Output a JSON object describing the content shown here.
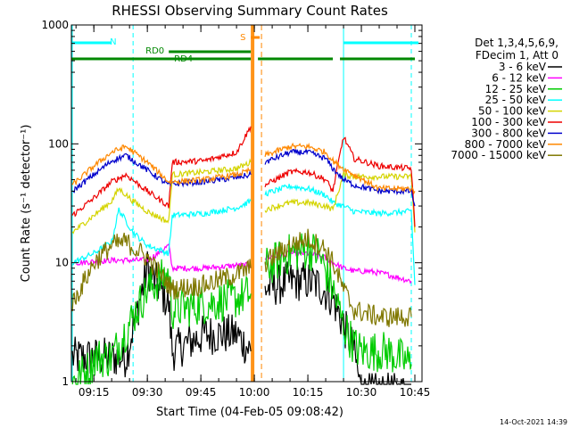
{
  "chart_data": {
    "type": "line",
    "title": "RHESSI Observing Summary Count Rates",
    "xlabel": "Start Time (04-Feb-05 09:08:42)",
    "ylabel": "Count Rate (s⁻¹ detector⁻¹)",
    "yscale": "log",
    "ylim": [
      1,
      1000
    ],
    "xlim": [
      "09:08:42",
      "10:47:00"
    ],
    "x_ticks": [
      "09:15",
      "09:30",
      "09:45",
      "10:00",
      "10:15",
      "10:30",
      "10:45"
    ],
    "y_ticks": [
      "1",
      "10",
      "100",
      "1000"
    ],
    "legend_header": [
      "Det 1,3,4,5,6,9,",
      "FDecim 1, Att 0"
    ],
    "legend_position": "right",
    "timestamp": "14-Oct-2021 14:39",
    "series": [
      {
        "name": "3 - 6 keV",
        "color": "#000000",
        "x": [
          "09:09",
          "09:20",
          "09:24",
          "09:30",
          "09:36",
          "09:37",
          "09:46",
          "09:55",
          "09:59",
          "10:00",
          "10:03",
          "10:10",
          "10:15",
          "10:18",
          "10:22",
          "10:25",
          "10:28",
          "10:30",
          "10:33",
          "10:37",
          "10:44"
        ],
        "y": [
          1.6,
          1.6,
          1.6,
          9,
          4.5,
          1.8,
          2.5,
          2.5,
          1.8,
          null,
          6,
          7,
          7,
          6.5,
          5,
          3,
          1.8,
          0.8,
          0.8,
          0.8,
          0.8
        ]
      },
      {
        "name": "6 - 12 keV",
        "color": "#ff00ff",
        "x": [
          "09:10",
          "09:20",
          "09:30",
          "09:33",
          "09:36",
          "09:37",
          "09:46",
          "09:55",
          "09:59",
          "10:00",
          "10:03",
          "10:10",
          "10:15",
          "10:20",
          "10:22",
          "10:25",
          "10:28",
          "10:32",
          "10:37",
          "10:44"
        ],
        "y": [
          10,
          10.5,
          10.5,
          12,
          14,
          9,
          9,
          9.5,
          9.5,
          null,
          11,
          12,
          12,
          11,
          10,
          9,
          8.5,
          8.5,
          8,
          7
        ]
      },
      {
        "name": "12 - 25 keV",
        "color": "#00cc00",
        "x": [
          "09:09",
          "09:14",
          "09:15",
          "09:20",
          "09:30",
          "09:36",
          "09:37",
          "09:46",
          "09:55",
          "09:59",
          "10:00",
          "10:03",
          "10:10",
          "10:15",
          "10:18",
          "10:22",
          "10:25",
          "10:28",
          "10:30",
          "10:37",
          "10:44"
        ],
        "y": [
          1,
          1.3,
          1.6,
          1.6,
          6,
          8,
          4,
          4.5,
          5,
          5.5,
          null,
          9,
          12,
          13,
          12,
          6,
          3,
          2,
          1.8,
          1.8,
          1.4
        ]
      },
      {
        "name": "25 - 50 keV",
        "color": "#00ffff",
        "x": [
          "09:09",
          "09:15",
          "09:20",
          "09:22",
          "09:26",
          "09:30",
          "09:36",
          "09:37",
          "09:46",
          "09:55",
          "09:59",
          "10:00",
          "10:03",
          "10:10",
          "10:15",
          "10:20",
          "10:22",
          "10:25",
          "10:28",
          "10:35",
          "10:44",
          "10:45"
        ],
        "y": [
          10,
          12,
          15,
          28,
          18,
          14,
          12,
          25,
          26,
          29,
          33,
          null,
          38,
          44,
          42,
          37,
          32,
          30,
          27,
          26,
          27,
          6.5
        ]
      },
      {
        "name": "50 - 100 keV",
        "color": "#d4d400",
        "x": [
          "09:09",
          "09:15",
          "09:20",
          "09:22",
          "09:26",
          "09:30",
          "09:36",
          "09:37",
          "09:46",
          "09:55",
          "09:59",
          "10:00",
          "10:03",
          "10:10",
          "10:15",
          "10:20",
          "10:22",
          "10:25",
          "10:28",
          "10:35",
          "10:44",
          "10:45"
        ],
        "y": [
          18,
          25,
          33,
          42,
          33,
          27,
          22,
          55,
          58,
          62,
          70,
          null,
          28,
          32,
          32,
          30,
          28,
          55,
          53,
          53,
          53,
          18
        ]
      },
      {
        "name": "100 - 300 keV",
        "color": "#ee0000",
        "x": [
          "09:09",
          "09:15",
          "09:20",
          "09:24",
          "09:30",
          "09:36",
          "09:37",
          "09:46",
          "09:55",
          "09:59",
          "10:00",
          "10:03",
          "10:10",
          "10:15",
          "10:20",
          "10:22",
          "10:25",
          "10:28",
          "10:35",
          "10:44",
          "10:45"
        ],
        "y": [
          25,
          35,
          48,
          55,
          40,
          30,
          70,
          72,
          85,
          140,
          null,
          45,
          58,
          58,
          50,
          40,
          115,
          75,
          65,
          62,
          20
        ]
      },
      {
        "name": "300 - 800 keV",
        "color": "#0000cc",
        "x": [
          "09:09",
          "09:15",
          "09:20",
          "09:24",
          "09:30",
          "09:36",
          "09:37",
          "09:46",
          "09:55",
          "09:59",
          "10:00",
          "10:03",
          "10:10",
          "10:15",
          "10:20",
          "10:22",
          "10:25",
          "10:28",
          "10:35",
          "10:44",
          "10:45"
        ],
        "y": [
          40,
          55,
          72,
          80,
          60,
          45,
          46,
          48,
          52,
          55,
          null,
          70,
          85,
          85,
          75,
          62,
          50,
          45,
          40,
          40,
          30
        ]
      },
      {
        "name": "800 - 7000 keV",
        "color": "#ff8800",
        "x": [
          "09:09",
          "09:15",
          "09:20",
          "09:24",
          "09:30",
          "09:36",
          "09:37",
          "09:46",
          "09:55",
          "09:59",
          "10:00",
          "10:03",
          "10:10",
          "10:15",
          "10:20",
          "10:22",
          "10:25",
          "10:28",
          "10:35",
          "10:44",
          "10:45"
        ],
        "y": [
          45,
          65,
          85,
          95,
          70,
          48,
          48,
          50,
          55,
          60,
          null,
          80,
          95,
          95,
          85,
          72,
          62,
          55,
          42,
          42,
          40
        ]
      },
      {
        "name": "7000 - 15000 keV",
        "color": "#807800",
        "x": [
          "09:09",
          "09:15",
          "09:20",
          "09:24",
          "09:30",
          "09:36",
          "09:37",
          "09:46",
          "09:55",
          "09:59",
          "10:00",
          "10:03",
          "10:10",
          "10:15",
          "10:20",
          "10:22",
          "10:25",
          "10:28",
          "10:35",
          "10:44"
        ],
        "y": [
          4.5,
          10,
          14,
          15,
          11,
          6.5,
          6,
          6.5,
          8,
          9,
          null,
          10,
          14,
          16,
          13,
          10,
          6,
          4,
          3.5,
          3.5
        ]
      }
    ],
    "annotations": {
      "flag_labels": [
        "N",
        "RD0",
        "RD4",
        "S"
      ],
      "night_bar_color": "#00ffff",
      "saa_bar_color": "#ff8800",
      "decimation_bar_color": "#008800",
      "night": [
        [
          "09:08:42",
          "09:20"
        ],
        [
          "10:25",
          "10:46"
        ]
      ],
      "night_markers_x": [
        "09:26",
        "10:44"
      ],
      "saa": [
        [
          "09:59",
          "10:01"
        ]
      ],
      "saa_marker_x": "10:01",
      "saa_fill": [
        "09:59",
        "10:00"
      ],
      "rd0": [
        [
          "09:26",
          "09:59"
        ]
      ],
      "rd4": [
        [
          "09:08:42",
          "09:59"
        ],
        [
          "10:01",
          "10:22"
        ],
        [
          "10:24",
          "10:45"
        ]
      ]
    }
  }
}
